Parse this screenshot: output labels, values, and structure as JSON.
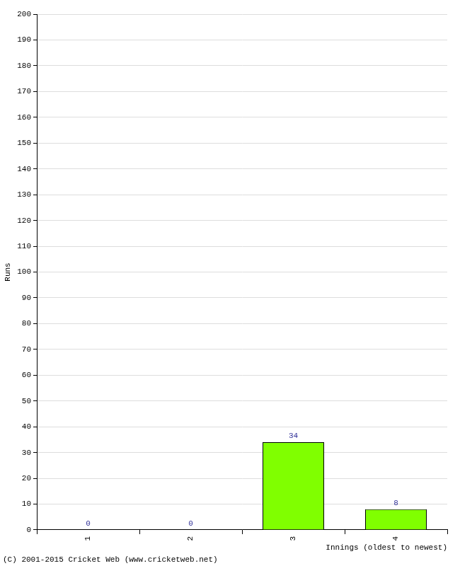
{
  "chart_data": {
    "type": "bar",
    "y_label": "Runs",
    "x_label": "Innings (oldest to newest)",
    "annotations": [
      "(C) 2001-2015 Cricket Web (www.cricketweb.net)"
    ],
    "categories": [
      "1",
      "2",
      "3",
      "4"
    ],
    "values": [
      0,
      0,
      34,
      8
    ],
    "color": "#80ff00",
    "ylim": [
      0,
      200
    ],
    "yticks": [
      0,
      10,
      20,
      30,
      40,
      50,
      60,
      70,
      80,
      90,
      100,
      110,
      120,
      130,
      140,
      150,
      160,
      170,
      180,
      190,
      200
    ],
    "grid": true,
    "data_labels": true
  }
}
